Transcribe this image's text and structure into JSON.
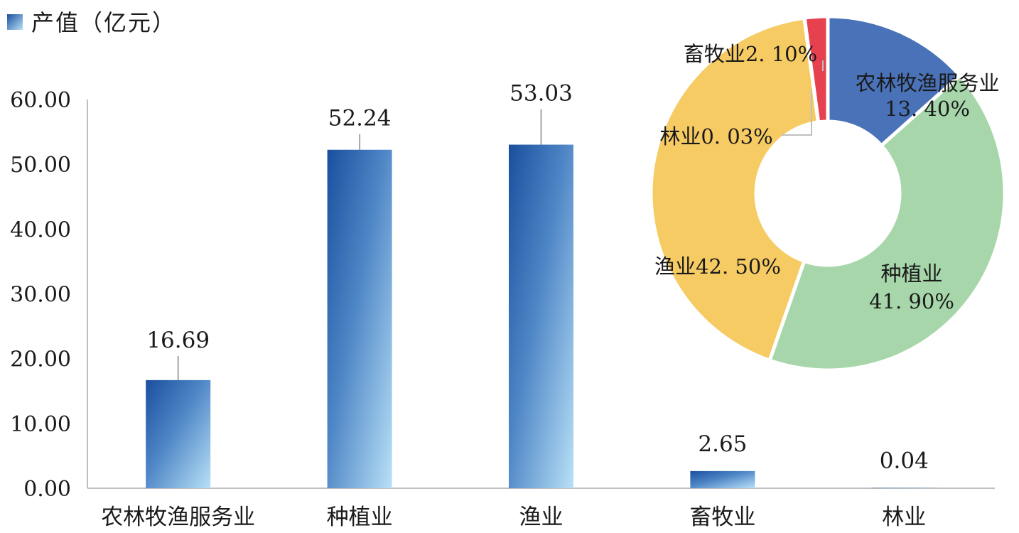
{
  "legend": {
    "label": "产值（亿元）"
  },
  "chart_data": [
    {
      "type": "bar",
      "categories": [
        "农林牧渔服务业",
        "种植业",
        "渔业",
        "畜牧业",
        "林业"
      ],
      "series": [
        {
          "name": "产值（亿元）",
          "values": [
            16.69,
            52.24,
            53.03,
            2.65,
            0.04
          ]
        }
      ],
      "value_labels": [
        "16.69",
        "52.24",
        "53.03",
        "2.65",
        "0.04"
      ],
      "y_ticks": [
        "0.00",
        "10.00",
        "20.00",
        "30.00",
        "40.00",
        "50.00",
        "60.00"
      ],
      "ylim": [
        0,
        60
      ],
      "grid": false,
      "legend_position": "top-left",
      "colors": {
        "bar_dark": "#1a4f9e",
        "bar_light": "#b8e1f7",
        "axis": "#bfbfbf",
        "leader": "#a6a6a6"
      }
    },
    {
      "type": "pie",
      "style": "donut",
      "slices": [
        {
          "label": "农林牧渔服务业",
          "percent_text": "13. 40%",
          "value": 13.4,
          "color": "#4a72b8"
        },
        {
          "label": "种植业",
          "percent_text": "41. 90%",
          "value": 41.9,
          "color": "#a6d6aa"
        },
        {
          "label": "渔业",
          "percent_text": "42. 50%",
          "value": 42.5,
          "color": "#f6cb63"
        },
        {
          "label": "林业",
          "percent_text": "0. 03%",
          "value": 0.03,
          "color": "#f6cb63"
        },
        {
          "label": "畜牧业",
          "percent_text": "2. 10%",
          "value": 2.1,
          "color": "#e5414f"
        }
      ],
      "legend_position": "none"
    }
  ]
}
